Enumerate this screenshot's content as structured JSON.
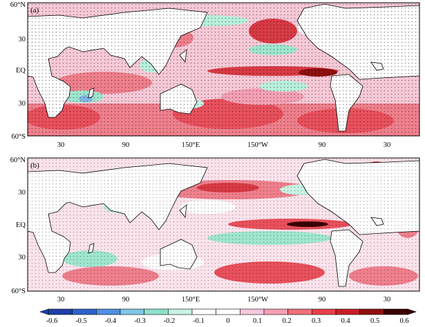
{
  "panels": [
    {
      "id": "a",
      "label": "(a)",
      "lat_ticks": [
        "60°N",
        "30",
        "EQ",
        "30",
        "60°S"
      ],
      "lon_ticks": [
        "30",
        "90",
        "150°E",
        "150°W",
        "90",
        "30"
      ]
    },
    {
      "id": "b",
      "label": "(b)",
      "lat_ticks": [
        "60°N",
        "30",
        "EQ",
        "30",
        "60°S"
      ],
      "lon_ticks": [
        "30",
        "90",
        "150°E",
        "150°W",
        "90",
        "30"
      ]
    }
  ],
  "colorbar": {
    "ticks": [
      "-0.6",
      "-0.5",
      "-0.4",
      "-0.3",
      "-0.2",
      "-0.1",
      "0",
      "0.1",
      "0.2",
      "0.3",
      "0.4",
      "0.5",
      "0.6"
    ],
    "colors": [
      "#1f3fa8",
      "#2f62c8",
      "#4f8fe0",
      "#7fc6e6",
      "#8fe0cc",
      "#c8f2e4",
      "#ffffff",
      "#ffffff",
      "#f8c8dc",
      "#f4a0b4",
      "#f07078",
      "#e8404a",
      "#c81e26",
      "#8e1010",
      "#3a0000"
    ]
  }
}
